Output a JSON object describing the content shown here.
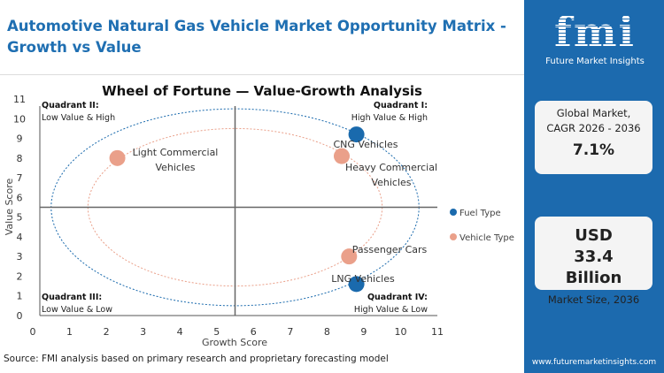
{
  "title": "Automotive Natural Gas Vehicle Market Opportunity Matrix - Growth vs Value",
  "source": "Source: FMI analysis based on primary research and proprietary forecasting model",
  "sidebar": {
    "logo_text": "fmi",
    "logo_subtitle": "Future Market Insights",
    "cagr_label": "Global Market, CAGR 2026 - 2036",
    "cagr_value": "7.1%",
    "size_value": "USD 33.4 Billion",
    "size_label": "Market Size, 2036",
    "url": "www.futuremarketinsights.com"
  },
  "chart_data": {
    "type": "scatter",
    "title": "Wheel of Fortune — Value-Growth Analysis",
    "xlabel": "Growth Score",
    "ylabel": "Value Score",
    "xlim": [
      0,
      11
    ],
    "ylim": [
      0,
      11
    ],
    "xticks": [
      0,
      1,
      2,
      3,
      4,
      5,
      6,
      7,
      8,
      9,
      10,
      11
    ],
    "yticks": [
      0,
      1,
      2,
      3,
      4,
      5,
      6,
      7,
      8,
      9,
      10,
      11
    ],
    "divider": {
      "x": 5.5,
      "y": 5.5
    },
    "legend_position": "right",
    "series": [
      {
        "name": "Fuel Type",
        "color": "#1a6aad",
        "points": [
          {
            "label": "CNG Vehicles",
            "x": 8.8,
            "y": 9.2
          },
          {
            "label": "LNG Vehicles",
            "x": 8.8,
            "y": 1.6
          }
        ]
      },
      {
        "name": "Vehicle Type",
        "color": "#eaa08a",
        "points": [
          {
            "label": "Light Commercial Vehicles",
            "x": 2.3,
            "y": 8.0
          },
          {
            "label": "Heavy Commercial Vehicles",
            "x": 8.4,
            "y": 8.1
          },
          {
            "label": "Passenger Cars",
            "x": 8.6,
            "y": 3.0
          }
        ]
      }
    ],
    "rings": [
      {
        "series": "Fuel Type",
        "cx": 5.5,
        "cy": 5.5,
        "rx": 5,
        "ry": 5
      },
      {
        "series": "Vehicle Type",
        "cx": 5.5,
        "cy": 5.5,
        "rx": 4,
        "ry": 4
      }
    ],
    "quadrants": [
      {
        "name": "Quadrant II:",
        "desc": "Low Value & High",
        "pos": "top-left"
      },
      {
        "name": "Quadrant I:",
        "desc": "High Value & High",
        "pos": "top-right"
      },
      {
        "name": "Quadrant III:",
        "desc": "Low Value & Low",
        "pos": "bottom-left"
      },
      {
        "name": "Quadrant IV:",
        "desc": "High Value & Low",
        "pos": "bottom-right"
      }
    ]
  }
}
